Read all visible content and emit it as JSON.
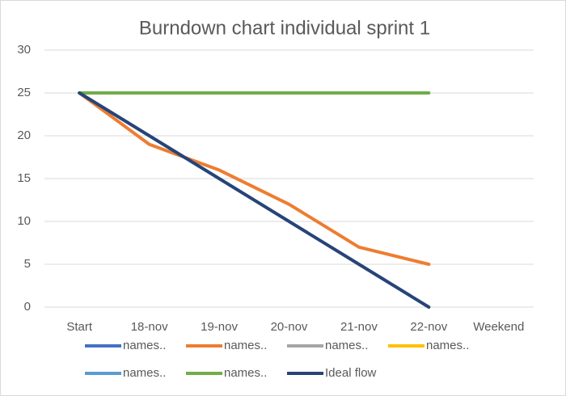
{
  "chart_data": {
    "type": "line",
    "title": "Burndown chart individual sprint 1",
    "categories": [
      "Start",
      "18-nov",
      "19-nov",
      "20-nov",
      "21-nov",
      "22-nov",
      "Weekend"
    ],
    "series": [
      {
        "name": "names..",
        "color": "#4472c4",
        "values": [
          null,
          null,
          null,
          null,
          null,
          null,
          null
        ]
      },
      {
        "name": "names..",
        "color": "#ed7d31",
        "values": [
          25,
          19,
          16,
          12,
          7,
          5,
          null
        ]
      },
      {
        "name": "names..",
        "color": "#a5a5a5",
        "values": [
          null,
          null,
          null,
          null,
          null,
          null,
          null
        ]
      },
      {
        "name": "names..",
        "color": "#ffc000",
        "values": [
          null,
          null,
          null,
          null,
          null,
          null,
          null
        ]
      },
      {
        "name": "names..",
        "color": "#5b9bd5",
        "values": [
          null,
          null,
          null,
          null,
          null,
          null,
          null
        ]
      },
      {
        "name": "names..",
        "color": "#70ad47",
        "values": [
          25,
          25,
          25,
          25,
          25,
          25,
          null
        ]
      },
      {
        "name": "Ideal flow",
        "color": "#264478",
        "values": [
          25,
          20,
          15,
          10,
          5,
          0,
          null
        ]
      }
    ],
    "ylim": [
      0,
      30
    ],
    "yticks": [
      0,
      5,
      10,
      15,
      20,
      25,
      30
    ],
    "grid": true,
    "legend": "bottom"
  }
}
